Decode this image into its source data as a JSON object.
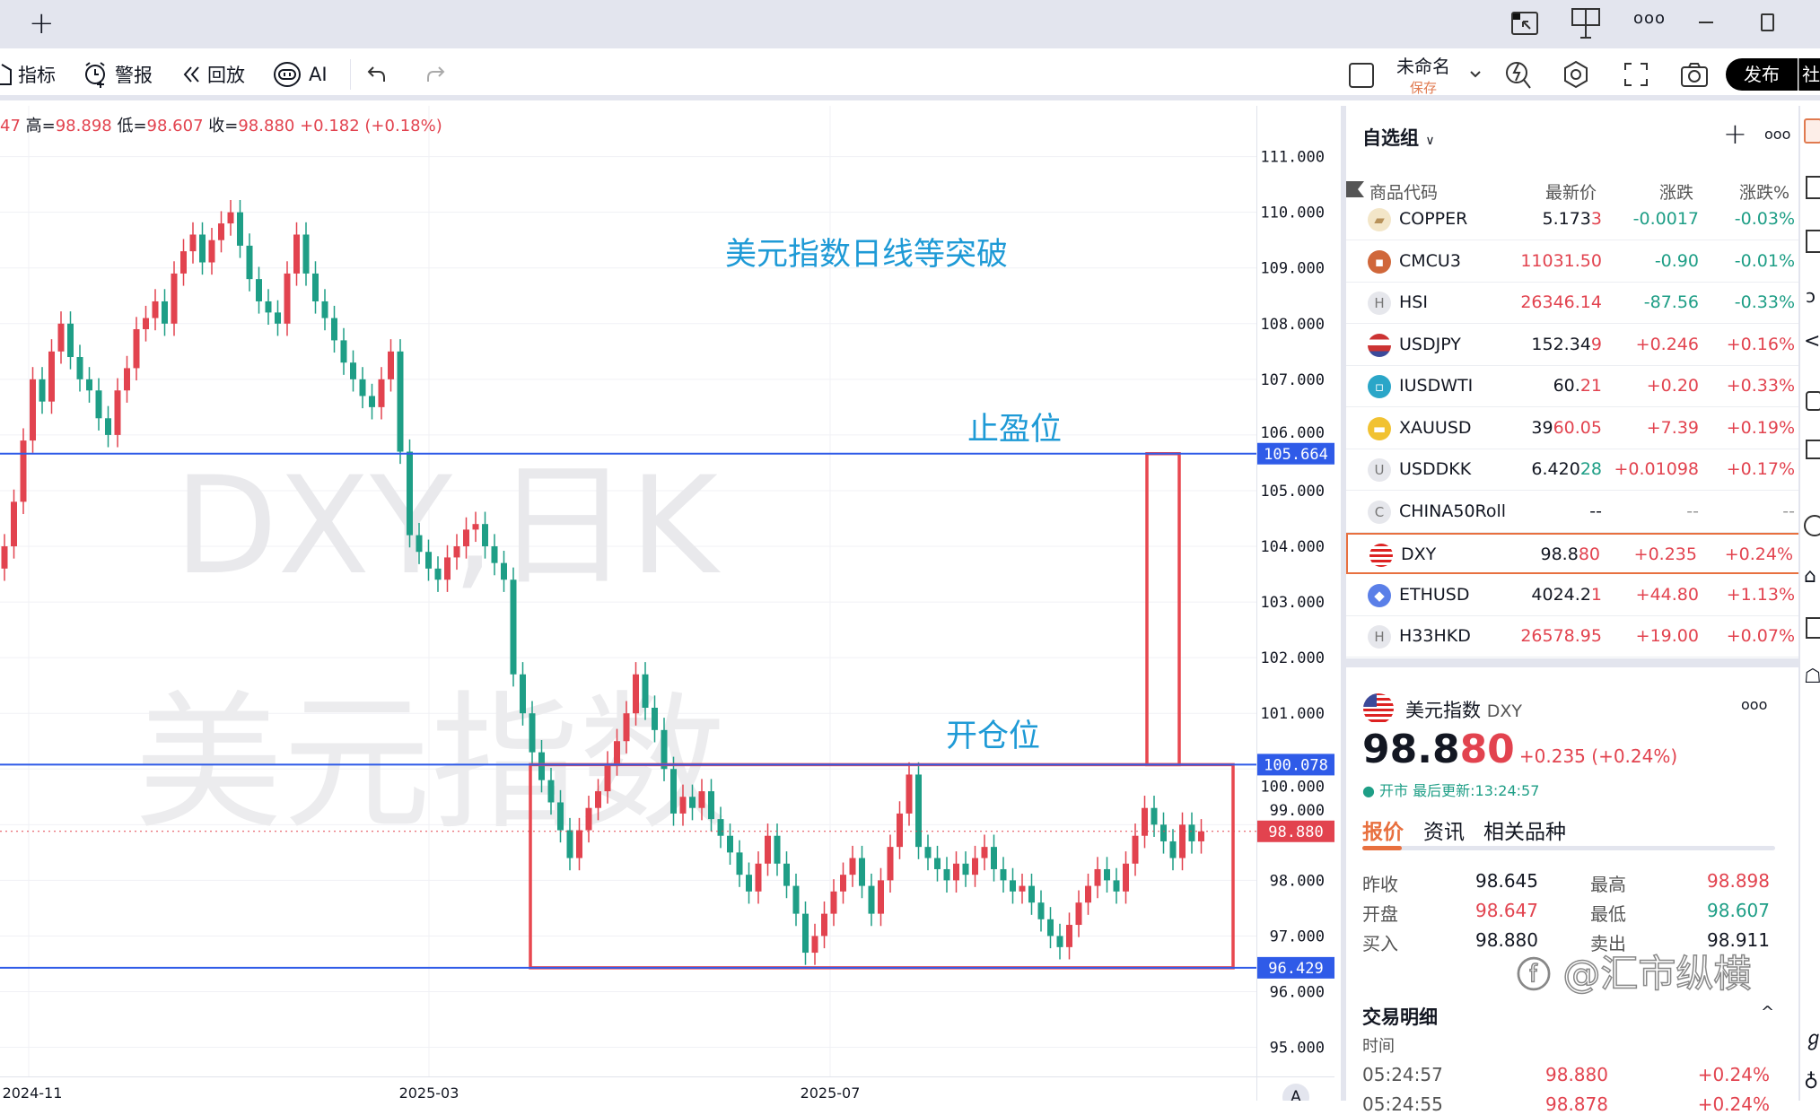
{
  "topbar": {
    "new_tab": "+",
    "icons": [
      "picture-in-picture-icon",
      "layout-icon",
      "more-icon",
      "minimize-icon",
      "maximize-icon"
    ]
  },
  "toolbar": {
    "indicators": "指标",
    "alerts": "警报",
    "replay": "回放",
    "ai": "AI",
    "layout_name": "未命名",
    "save": "保存",
    "publish": "发布",
    "community": "社"
  },
  "legend": {
    "prefix": "47",
    "high_label": "高=",
    "high": "98.898",
    "low_label": "低=",
    "low": "98.607",
    "close_label": "收=",
    "close": "98.880",
    "change": "+0.182 (+0.18%)"
  },
  "annotations": {
    "title": "美元指数日线等突破",
    "take_profit": "止盈位",
    "entry": "开仓位",
    "watermark_1": "DXY,日K",
    "watermark_2": "美元指数",
    "credit": "@汇市纵横"
  },
  "colors": {
    "up": "#e2434f",
    "down": "#1e9e86",
    "hline": "#2f5be8",
    "box": "#e8474f",
    "annotation": "#1e9ad6"
  },
  "chart_data": {
    "type": "candlestick",
    "symbol": "DXY",
    "interval": "日K",
    "x_ticks": [
      "2024-11",
      "2025-03",
      "2025-07"
    ],
    "y_ticks": [
      "111.000",
      "110.000",
      "109.000",
      "108.000",
      "107.000",
      "106.000",
      "105.000",
      "104.000",
      "103.000",
      "102.000",
      "101.000",
      "100.000",
      "99.000",
      "98.000",
      "97.000",
      "96.000",
      "95.000"
    ],
    "ylim": [
      95,
      111
    ],
    "close": [
      104.0,
      104.8,
      105.9,
      107.0,
      106.6,
      107.5,
      108.0,
      107.4,
      107.0,
      106.8,
      106.3,
      106.0,
      106.8,
      107.2,
      107.9,
      108.1,
      108.4,
      108.0,
      108.9,
      109.3,
      109.6,
      109.1,
      109.5,
      109.8,
      110.0,
      109.4,
      108.8,
      108.4,
      108.2,
      108.0,
      108.9,
      109.6,
      108.9,
      108.4,
      108.1,
      107.7,
      107.3,
      107.0,
      106.7,
      106.5,
      107.0,
      107.5,
      105.7,
      104.2,
      103.9,
      103.6,
      103.4,
      103.8,
      104.0,
      104.3,
      104.4,
      104.0,
      103.7,
      103.4,
      101.7,
      101.0,
      100.3,
      99.8,
      99.4,
      98.9,
      98.4,
      98.9,
      99.3,
      99.6,
      100.1,
      100.5,
      101.0,
      101.7,
      101.1,
      100.7,
      100.0,
      99.2,
      99.5,
      99.3,
      99.6,
      99.1,
      98.8,
      98.5,
      98.1,
      97.8,
      98.3,
      98.8,
      98.3,
      97.9,
      97.4,
      96.7,
      97.0,
      97.4,
      97.8,
      98.1,
      98.4,
      97.9,
      97.4,
      98.0,
      98.6,
      99.2,
      99.9,
      98.6,
      98.4,
      98.2,
      98.0,
      98.3,
      98.1,
      98.4,
      98.6,
      98.2,
      98.0,
      97.8,
      97.9,
      97.6,
      97.3,
      97.0,
      96.8,
      97.2,
      97.6,
      97.9,
      98.2,
      98.0,
      97.8,
      98.3,
      98.8,
      99.3,
      99.0,
      98.7,
      98.4,
      99.0,
      98.7,
      98.88
    ],
    "horizontal_lines": [
      {
        "value": 105.664,
        "label": "105.664"
      },
      {
        "value": 100.078,
        "label": "100.078"
      },
      {
        "value": 96.429,
        "label": "96.429"
      }
    ],
    "last_price": {
      "value": 98.88,
      "label": "98.880"
    },
    "range_box": {
      "top": 100.078,
      "bottom": 96.429
    },
    "target_box": {
      "top": 105.664,
      "bottom": 100.078
    },
    "auto_scale_button": "A"
  },
  "watchlist": {
    "title": "自选组",
    "columns": [
      "商品代码",
      "最新价",
      "涨跌",
      "涨跌%"
    ],
    "rows": [
      {
        "symbol": "COPPER",
        "icon": "copper-icon",
        "price_a": "5.173",
        "price_b": "3",
        "price_b_color": "red",
        "change": "-0.0017",
        "pct": "-0.03%",
        "dir": "down"
      },
      {
        "symbol": "CMCU3",
        "icon": "cmcu3-icon",
        "price_a": "",
        "price_b": "11031.50",
        "price_b_color": "red",
        "change": "-0.90",
        "pct": "-0.01%",
        "dir": "down"
      },
      {
        "symbol": "HSI",
        "icon": "H",
        "price_a": "",
        "price_b": "26346.14",
        "price_b_color": "red",
        "change": "-87.56",
        "pct": "-0.33%",
        "dir": "down"
      },
      {
        "symbol": "USDJPY",
        "icon": "us-jp-flag-icon",
        "price_a": "152.34",
        "price_b": "9",
        "price_b_color": "red",
        "change": "+0.246",
        "pct": "+0.16%",
        "dir": "up"
      },
      {
        "symbol": "IUSDWTI",
        "icon": "oil-icon",
        "price_a": "60.",
        "price_b": "21",
        "price_b_color": "red",
        "change": "+0.20",
        "pct": "+0.33%",
        "dir": "up"
      },
      {
        "symbol": "XAUUSD",
        "icon": "gold-icon",
        "price_a": "39",
        "price_b": "60.05",
        "price_b_color": "red",
        "change": "+7.39",
        "pct": "+0.19%",
        "dir": "up"
      },
      {
        "symbol": "USDDKK",
        "icon": "U",
        "price_a": "6.420",
        "price_b": "28",
        "price_b_color": "green",
        "change": "+0.01098",
        "pct": "+0.17%",
        "dir": "up"
      },
      {
        "symbol": "CHINA50Roll",
        "icon": "C",
        "price_a": "--",
        "price_b": "",
        "price_b_color": "red",
        "change": "--",
        "pct": "--",
        "dir": "none"
      },
      {
        "symbol": "DXY",
        "icon": "us-flag-icon",
        "price_a": "98.8",
        "price_b": "80",
        "price_b_color": "red",
        "change": "+0.235",
        "pct": "+0.24%",
        "dir": "up"
      },
      {
        "symbol": "ETHUSD",
        "icon": "eth-icon",
        "price_a": "4024.2",
        "price_b": "1",
        "price_b_color": "red",
        "change": "+44.80",
        "pct": "+1.13%",
        "dir": "up"
      },
      {
        "symbol": "H33HKD",
        "icon": "H",
        "price_a": "",
        "price_b": "26578.95",
        "price_b_color": "red",
        "change": "+19.00",
        "pct": "+0.07%",
        "dir": "up"
      }
    ]
  },
  "detail": {
    "name": "美元指数",
    "code": "DXY",
    "price_a": "98.8",
    "price_b": "80",
    "change": "+0.235 (+0.24%)",
    "status": "开市",
    "updated": "最后更新:13:24:57",
    "tabs": [
      "报价",
      "资讯",
      "相关品种"
    ],
    "stats": [
      {
        "label": "昨收",
        "value": "98.645",
        "color": "#131722",
        "label2": "最高",
        "value2": "98.898",
        "color2": "#e2434f"
      },
      {
        "label": "开盘",
        "value": "98.647",
        "color": "#e2434f",
        "label2": "最低",
        "value2": "98.607",
        "color2": "#1e9e86"
      },
      {
        "label": "买入",
        "value": "98.880",
        "color": "#131722",
        "label2": "卖出",
        "value2": "98.911",
        "color2": "#131722"
      }
    ],
    "trades_title": "交易明细",
    "trades_col": "时间",
    "trades": [
      {
        "time": "05:24:57",
        "price": "98.880",
        "pct": "+0.24%"
      },
      {
        "time": "05:24:55",
        "price": "98.878",
        "pct": "+0.24%"
      }
    ]
  }
}
